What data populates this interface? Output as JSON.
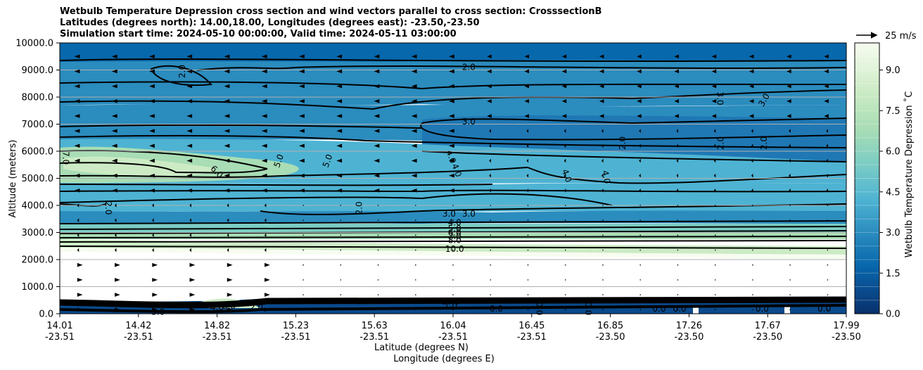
{
  "chart_data": {
    "type": "contour",
    "title_lines": [
      "Wetbulb Temperature Depression cross section and wind vectors parallel to cross section: CrosssectionB",
      "Latitudes (degrees north): 14.00,18.00, Longitudes (degrees east): -23.50,-23.50",
      "Simulation start time: 2024-05-10 00:00:00, Valid time: 2024-05-11 03:00:00"
    ],
    "ylabel": "Altitude (meters)",
    "xlabel_lat": "Latitude (degrees N)",
    "xlabel_lon": "Longitude (degrees E)",
    "ylim": [
      0,
      10000
    ],
    "y_ticks": [
      "0.0",
      "1000.0",
      "2000.0",
      "3000.0",
      "4000.0",
      "5000.0",
      "6000.0",
      "7000.0",
      "8000.0",
      "9000.0",
      "10000.0"
    ],
    "x_ticks": [
      {
        "lat": "14.01",
        "lon": "-23.51"
      },
      {
        "lat": "14.42",
        "lon": "-23.51"
      },
      {
        "lat": "14.82",
        "lon": "-23.51"
      },
      {
        "lat": "15.23",
        "lon": "-23.51"
      },
      {
        "lat": "15.63",
        "lon": "-23.51"
      },
      {
        "lat": "16.04",
        "lon": "-23.51"
      },
      {
        "lat": "16.45",
        "lon": "-23.51"
      },
      {
        "lat": "16.85",
        "lon": "-23.50"
      },
      {
        "lat": "17.26",
        "lon": "-23.50"
      },
      {
        "lat": "17.67",
        "lon": "-23.50"
      },
      {
        "lat": "17.99",
        "lon": "-23.50"
      }
    ],
    "quiver_key": "25 m/s",
    "colorbar": {
      "label": "Wetbulb Temperature Depression ˚C",
      "ticks": [
        "0.0",
        "1.5",
        "3.0",
        "4.5",
        "6.0",
        "7.5",
        "9.0"
      ],
      "range": [
        0,
        10
      ]
    },
    "contour_labels": [
      {
        "text": "2.0",
        "x": 0.52,
        "y": 9120,
        "rot": 0
      },
      {
        "text": "2.0",
        "x": 0.155,
        "y": 8950,
        "rot": -90
      },
      {
        "text": "3.0",
        "x": 0.52,
        "y": 7100,
        "rot": 0
      },
      {
        "text": "3.0",
        "x": 0.84,
        "y": 7950,
        "rot": 90
      },
      {
        "text": "3.0",
        "x": 0.895,
        "y": 7900,
        "rot": -60
      },
      {
        "text": "2.0",
        "x": 0.715,
        "y": 6300,
        "rot": -90
      },
      {
        "text": "2.0",
        "x": 0.84,
        "y": 6300,
        "rot": -90
      },
      {
        "text": "2.0",
        "x": 0.895,
        "y": 6300,
        "rot": -90
      },
      {
        "text": "7.0",
        "x": 0.008,
        "y": 5750,
        "rot": 90
      },
      {
        "text": "6.0",
        "x": 0.2,
        "y": 5250,
        "rot": 45
      },
      {
        "text": "5.0",
        "x": 0.278,
        "y": 5650,
        "rot": -70
      },
      {
        "text": "5.0",
        "x": 0.34,
        "y": 5650,
        "rot": -70
      },
      {
        "text": "4.0",
        "x": 0.498,
        "y": 5800,
        "rot": 70
      },
      {
        "text": "4.0",
        "x": 0.505,
        "y": 5300,
        "rot": 70
      },
      {
        "text": "4.0",
        "x": 0.645,
        "y": 5100,
        "rot": 70
      },
      {
        "text": "4.0",
        "x": 0.695,
        "y": 5050,
        "rot": 80
      },
      {
        "text": "2.0",
        "x": 0.062,
        "y": 3900,
        "rot": 90
      },
      {
        "text": "2.0",
        "x": 0.38,
        "y": 3900,
        "rot": -90
      },
      {
        "text": "3.0",
        "x": 0.495,
        "y": 3700,
        "rot": 0
      },
      {
        "text": "3.0",
        "x": 0.52,
        "y": 3700,
        "rot": 0
      },
      {
        "text": "4.0",
        "x": 0.502,
        "y": 3380,
        "rot": 0
      },
      {
        "text": "5.0",
        "x": 0.502,
        "y": 3150,
        "rot": 0
      },
      {
        "text": "6.0",
        "x": 0.502,
        "y": 3000,
        "rot": 0
      },
      {
        "text": "7.0",
        "x": 0.502,
        "y": 2870,
        "rot": 0
      },
      {
        "text": "8.0",
        "x": 0.502,
        "y": 2730,
        "rot": 0
      },
      {
        "text": "10.0",
        "x": 0.502,
        "y": 2400,
        "rot": 0
      },
      {
        "text": "10.0",
        "x": 0.497,
        "y": 470,
        "rot": 0
      },
      {
        "text": "1.0",
        "x": 0.497,
        "y": 300,
        "rot": 0
      },
      {
        "text": "0.0",
        "x": 0.555,
        "y": 190,
        "rot": 0
      },
      {
        "text": "0.0",
        "x": 0.61,
        "y": 190,
        "rot": 90
      },
      {
        "text": "0.0",
        "x": 0.672,
        "y": 190,
        "rot": 90
      },
      {
        "text": "0.0",
        "x": 0.762,
        "y": 190,
        "rot": 0
      },
      {
        "text": "0.0",
        "x": 0.788,
        "y": 190,
        "rot": 0
      },
      {
        "text": "0.0",
        "x": 0.893,
        "y": 190,
        "rot": 0
      },
      {
        "text": "0.0",
        "x": 0.972,
        "y": 190,
        "rot": 0
      },
      {
        "text": "5.0",
        "x": 0.125,
        "y": 80,
        "rot": 0
      },
      {
        "text": "4.0",
        "x": 0.2,
        "y": 250,
        "rot": 0
      },
      {
        "text": "6.0",
        "x": 0.215,
        "y": 300,
        "rot": 0
      },
      {
        "text": "2.0",
        "x": 0.25,
        "y": 250,
        "rot": 0
      }
    ]
  }
}
